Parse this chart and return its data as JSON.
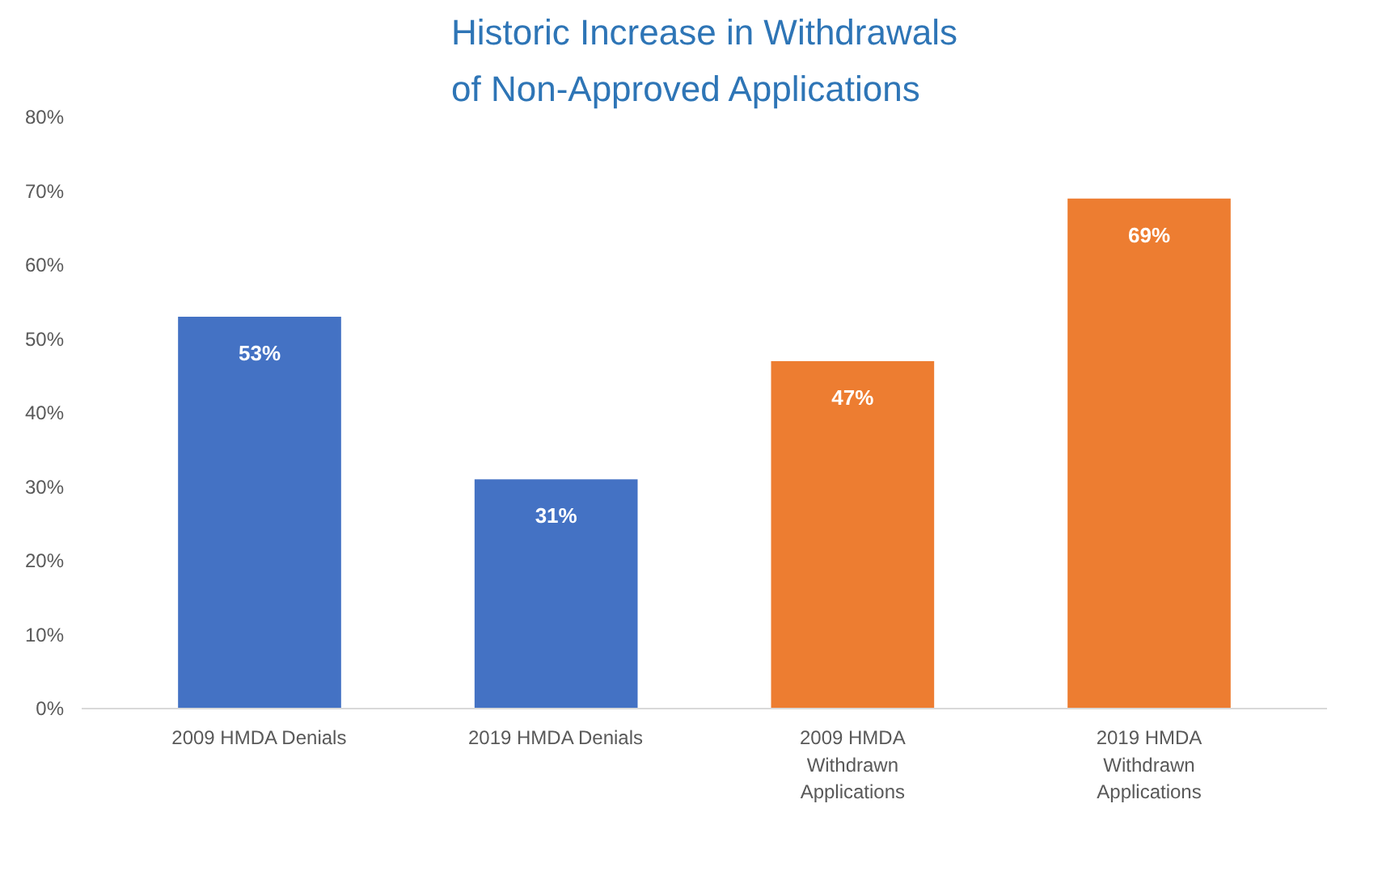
{
  "chart_data": {
    "type": "bar",
    "title": "Historic Increase in Withdrawals of Non-Approved Applications",
    "categories": [
      "2009 HMDA Denials",
      "2019 HMDA Denials",
      "2009 HMDA Withdrawn Applications",
      "2019 HMDA Withdrawn Applications"
    ],
    "values": [
      53,
      31,
      47,
      69
    ],
    "colors": [
      "#4472c4",
      "#4472c4",
      "#ed7d31",
      "#ed7d31"
    ],
    "value_labels": [
      "53%",
      "31%",
      "47%",
      "69%"
    ],
    "ylim": [
      0,
      80
    ],
    "yticks": [
      {
        "value": 0,
        "label": "0%"
      },
      {
        "value": 10,
        "label": "10%"
      },
      {
        "value": 20,
        "label": "20%"
      },
      {
        "value": 30,
        "label": "30%"
      },
      {
        "value": 40,
        "label": "40%"
      },
      {
        "value": 50,
        "label": "50%"
      },
      {
        "value": 60,
        "label": "60%"
      },
      {
        "value": 70,
        "label": "70%"
      },
      {
        "value": 80,
        "label": "80%"
      }
    ],
    "grid": false
  }
}
